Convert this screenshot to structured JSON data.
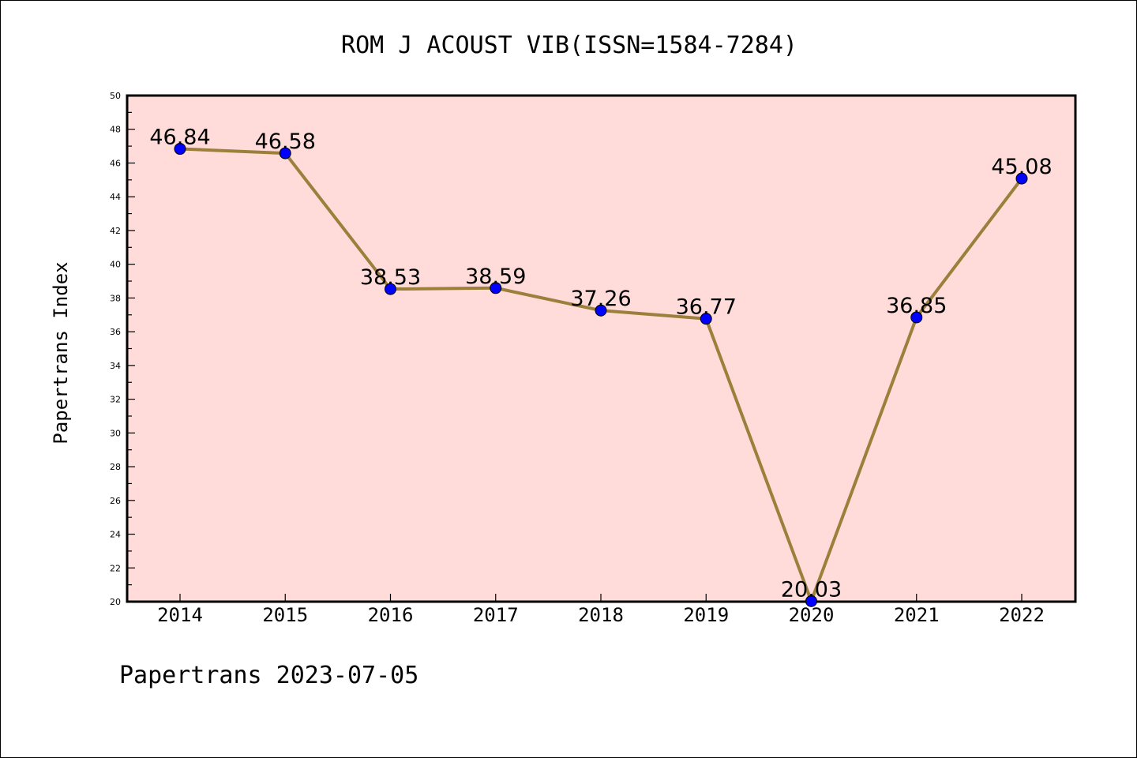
{
  "chart_data": {
    "type": "line",
    "title": "ROM J ACOUST VIB(ISSN=1584-7284)",
    "ylabel": "Papertrans Index",
    "xlabel": "",
    "categories": [
      "2014",
      "2015",
      "2016",
      "2017",
      "2018",
      "2019",
      "2020",
      "2021",
      "2022"
    ],
    "values": [
      46.84,
      46.58,
      38.53,
      38.59,
      37.26,
      36.77,
      20.03,
      36.85,
      45.08
    ],
    "data_labels": [
      "46.84",
      "46.58",
      "38.53",
      "38.59",
      "37.26",
      "36.77",
      "20.03",
      "36.85",
      "45.08"
    ],
    "ylim": [
      20,
      50
    ],
    "yticks": [
      "20",
      "22",
      "24",
      "26",
      "28",
      "30",
      "32",
      "34",
      "36",
      "38",
      "40",
      "42",
      "44",
      "46",
      "48",
      "50"
    ],
    "grid": false,
    "legend": "none",
    "colors": {
      "plot_background": "#FFDCDA",
      "line": "#9B7F3A",
      "marker": "#0000FF"
    }
  },
  "footer": "Papertrans 2023-07-05"
}
